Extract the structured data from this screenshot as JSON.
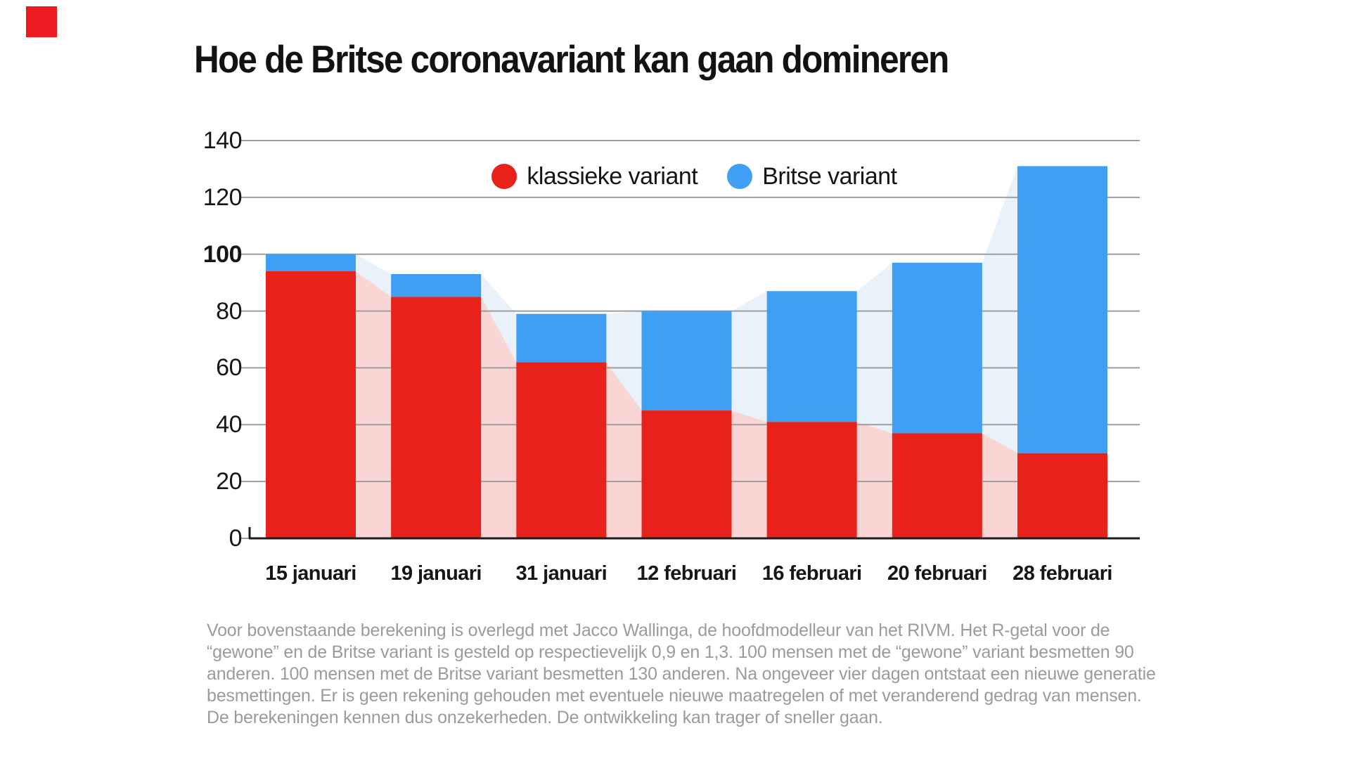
{
  "brand": {
    "logo_color": "#ec1b22"
  },
  "title": "Hoe de Britse coronavariant kan gaan domineren",
  "legend": [
    {
      "label": "klassieke variant",
      "color": "#e8211a"
    },
    {
      "label": "Britse variant",
      "color": "#3f9ff5"
    }
  ],
  "chart_data": {
    "type": "bar",
    "stacked": true,
    "title": "Hoe de Britse coronavariant kan gaan domineren",
    "categories": [
      "15 januari",
      "19 januari",
      "31 januari",
      "12 februari",
      "16 februari",
      "20 februari",
      "28 februari"
    ],
    "series": [
      {
        "name": "klassieke variant",
        "color": "#e8211a",
        "light_color": "#f9d5d4",
        "values": [
          94,
          85,
          62,
          45,
          41,
          37,
          30
        ]
      },
      {
        "name": "Britse variant",
        "color": "#3f9ff5",
        "light_color": "#e9f2fa",
        "values": [
          6,
          8,
          17,
          35,
          46,
          60,
          101
        ]
      }
    ],
    "totals": [
      100,
      93,
      79,
      80,
      87,
      97,
      131
    ],
    "xlabel": "",
    "ylabel": "",
    "ylim": [
      0,
      140
    ],
    "yticks": [
      0,
      20,
      40,
      60,
      80,
      100,
      120,
      140
    ],
    "bold_ytick": 100,
    "grid": true,
    "gridline_color": "#9e9e9e",
    "axis_color": "#1c1c1c",
    "legend_position": "top-center",
    "background_area": "pale interpolation areas connect bar tops between sampled dates"
  },
  "footnote_lines": [
    "Voor bovenstaande berekening is overlegd met Jacco Wallinga, de hoofdmodelleur van het RIVM. Het R-getal voor de",
    "“gewone” en de Britse variant is gesteld op respectievelijk 0,9 en 1,3. 100 mensen met de “gewone” variant besmetten 90",
    "anderen. 100 mensen met de Britse variant besmetten 130 anderen. Na ongeveer vier dagen ontstaat een nieuwe generatie",
    "besmettingen. Er is geen rekening gehouden met eventuele nieuwe maatregelen of met veranderend gedrag van mensen.",
    "De berekeningen kennen dus onzekerheden. De ontwikkeling kan trager of sneller gaan."
  ]
}
